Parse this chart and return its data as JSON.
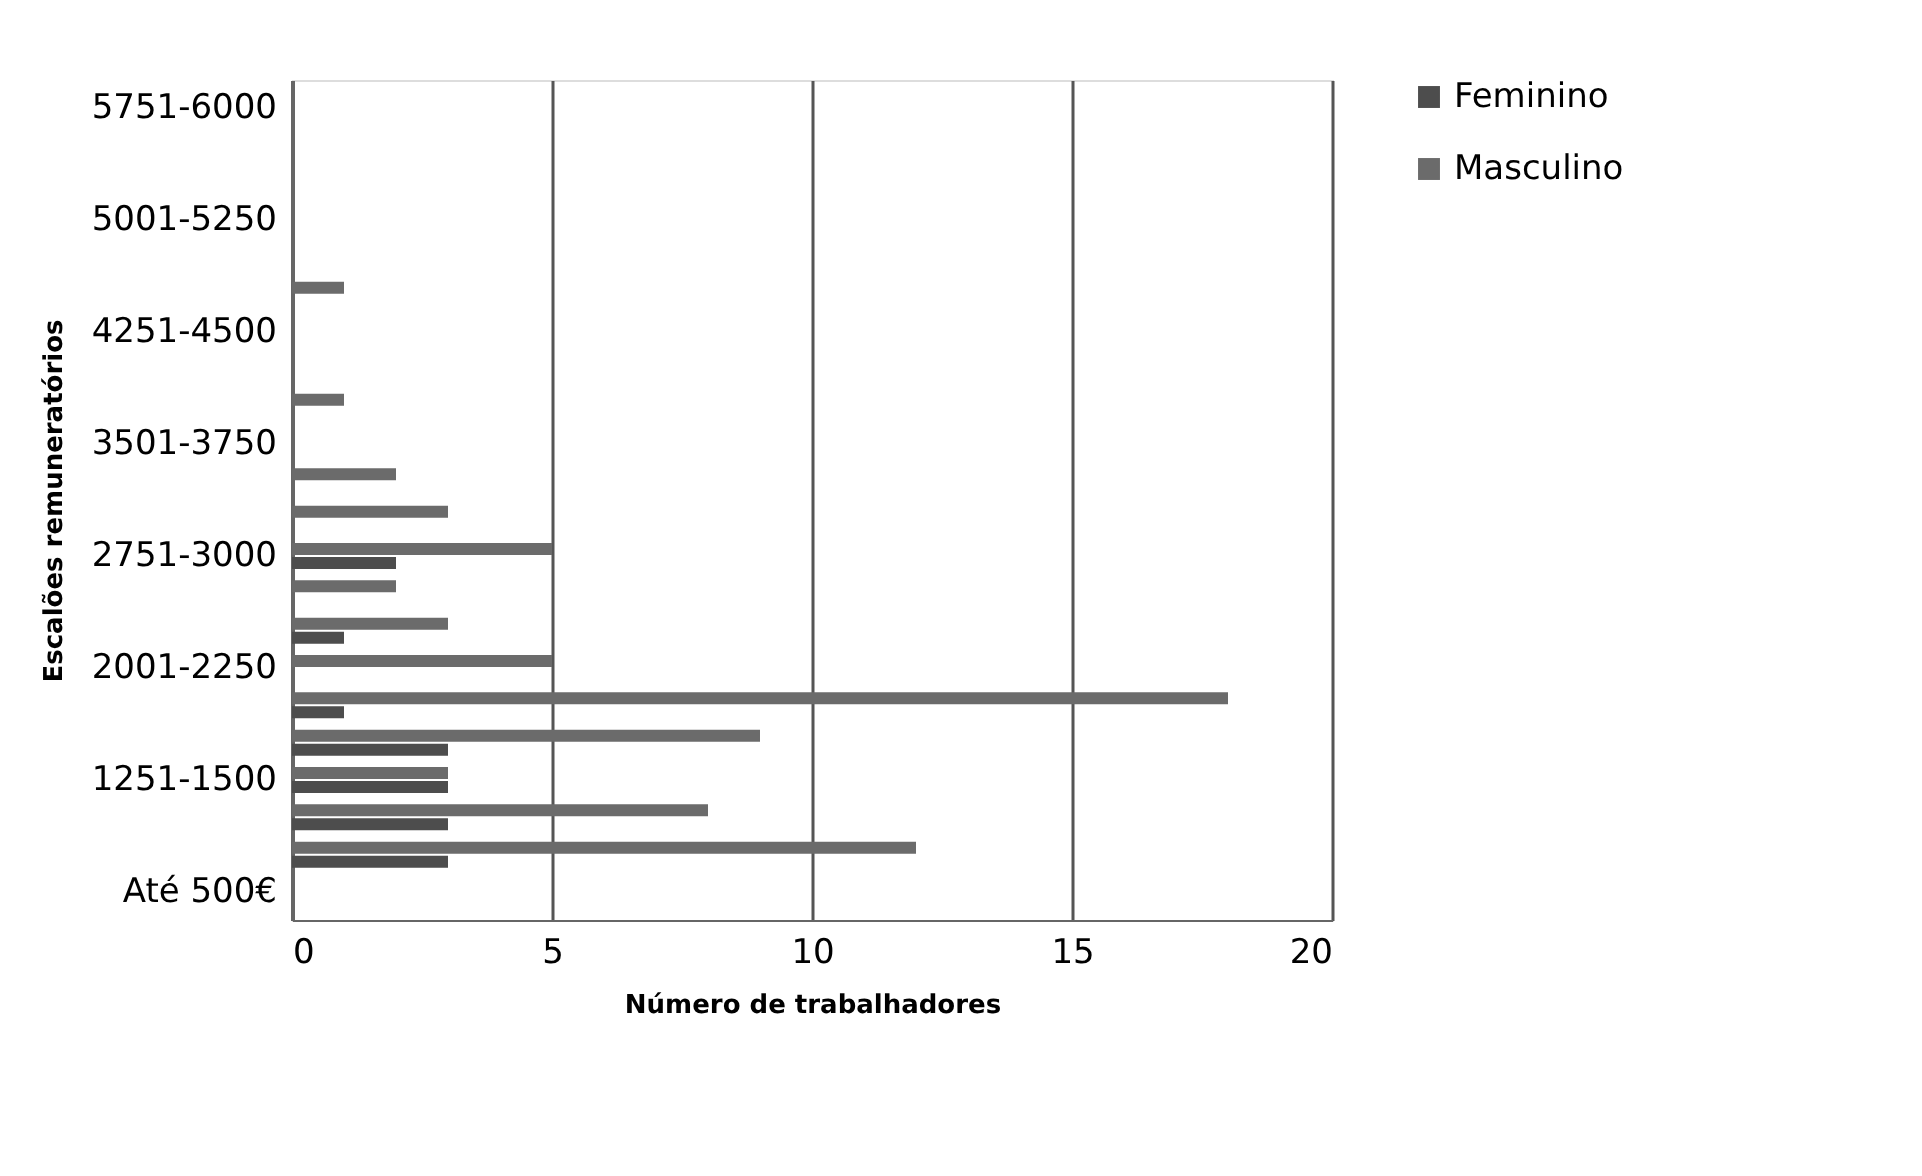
{
  "chart_data": {
    "type": "bar",
    "orientation": "horizontal",
    "xlabel": "Número de trabalhadores",
    "ylabel": "Escalões remuneratórios",
    "categories": [
      "5751-6000",
      null,
      null,
      "5001-5250",
      null,
      null,
      "4251-4500",
      null,
      null,
      "3501-3750",
      null,
      null,
      "2751-3000",
      null,
      null,
      "2001-2250",
      null,
      null,
      "1251-1500",
      null,
      null,
      "Até 500€"
    ],
    "series": [
      {
        "name": "Feminino",
        "color": "#4d4d4d",
        "values": [
          0,
          0,
          0,
          0,
          0,
          0,
          0,
          0,
          0,
          0,
          0,
          0,
          2,
          0,
          1,
          0,
          1,
          3,
          3,
          3,
          3,
          0
        ]
      },
      {
        "name": "Masculino",
        "color": "#6b6b6b",
        "values": [
          0,
          0,
          0,
          0,
          0,
          1,
          0,
          0,
          1,
          0,
          2,
          3,
          5,
          2,
          3,
          5,
          18,
          9,
          3,
          8,
          12,
          0
        ]
      }
    ],
    "xlim": [
      0,
      20
    ],
    "xticks": [
      0,
      5,
      10,
      15,
      20
    ],
    "grid": "x",
    "legend": "right"
  }
}
